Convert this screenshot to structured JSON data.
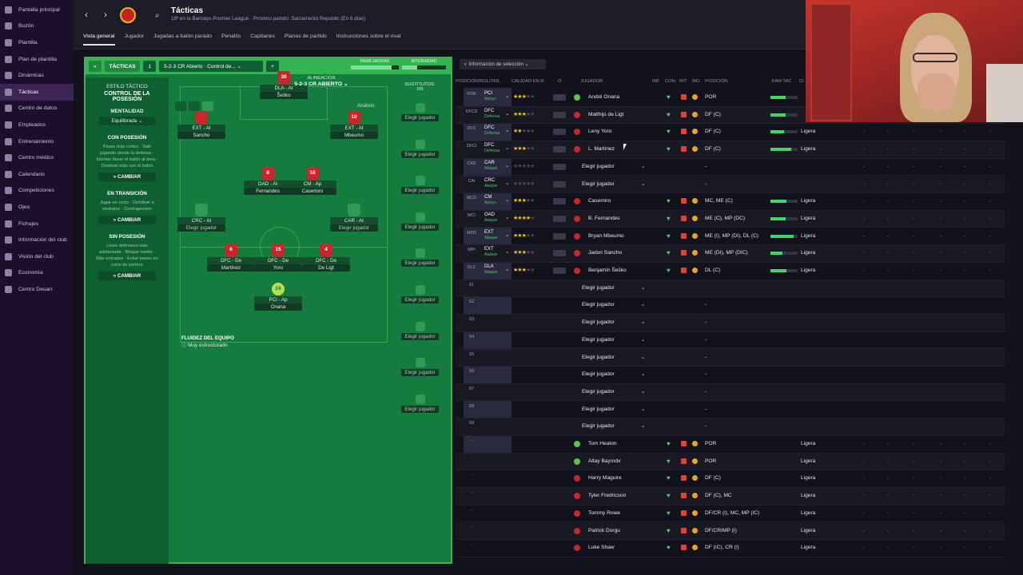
{
  "sidebar": {
    "items": [
      "Pantalla principal",
      "Buzón",
      "Plantilla",
      "Plan de plantilla",
      "Dinámicas",
      "Tácticas",
      "Centro de datos",
      "Empleados",
      "Entrenamiento",
      "Centro médico",
      "Calendario",
      "Competiciones",
      "Ojeo",
      "Fichajes",
      "Información del club",
      "Visión del club",
      "Economía",
      "Centro Desarr."
    ],
    "active_index": 5
  },
  "header": {
    "title": "Tácticas",
    "subtitle": "18º en la Barclays Premier League · Próximo partido: Sacramento Republic (En 6 días)"
  },
  "tabs": [
    "Vista general",
    "Jugador",
    "Jugadas a balón parado",
    "Penaltis",
    "Capitanes",
    "Planes de partido",
    "Instrucciones sobre el rival"
  ],
  "tactic_bar": {
    "label": "TÁCTICAS",
    "slot": "1",
    "formation_select": "5-2-3 CR Abierto · Control de...",
    "add": "+",
    "familiarity": "FAMILIARIDAD",
    "intensity": "INTENSIDAD"
  },
  "style": {
    "label": "ESTILO TÁCTICO",
    "value": "CONTROL DE LA POSESIÓN",
    "mentality_label": "MENTALIDAD",
    "mentality": "Equilibrada",
    "phases": [
      {
        "title": "CON POSESIÓN",
        "text": "Pases más cortos · Salir jugando desde la defensa · Intentar llevar el balón al área · Dominar más con el balón",
        "button": "CAMBIAR"
      },
      {
        "title": "EN TRANSICIÓN",
        "text": "Jugar en corto · Distribuir a centrales · Contrapresión",
        "button": "CAMBIAR"
      },
      {
        "title": "SIN POSESIÓN",
        "text": "Línea defensiva más adelantada · Bloque medio · Más entradas · Evitar pases en corto de portero",
        "button": "CAMBIAR"
      }
    ]
  },
  "alignment": {
    "label": "ALINEACIÓN",
    "formation": "5-2-3 CR ABIERTO",
    "analysis": "Análisis",
    "fluidity_label": "FLUIDEZ DEL EQUIPO",
    "fluidity": "Muy estructurado",
    "players": [
      {
        "num": "30",
        "role": "DLA - At",
        "name": "Šeško"
      },
      {
        "num": "",
        "role": "EXT - At",
        "name": "Sancho"
      },
      {
        "num": "10",
        "role": "EXT - At",
        "name": "Mbeumo"
      },
      {
        "num": "8",
        "role": "OAD - At",
        "name": "Fernandes"
      },
      {
        "num": "18",
        "role": "CM - Ap",
        "name": "Casemiro"
      },
      {
        "num": "",
        "role": "CRC - At",
        "name": "Elegir jugador"
      },
      {
        "num": "",
        "role": "CAR - At",
        "name": "Elegir jugador"
      },
      {
        "num": "6",
        "role": "DFC - De",
        "name": "Martínez"
      },
      {
        "num": "15",
        "role": "DFC - De",
        "name": "Yoro"
      },
      {
        "num": "4",
        "role": "DFC - De",
        "name": "De Ligt"
      },
      {
        "num": "24",
        "role": "PCI - Ap",
        "name": "Onana"
      }
    ]
  },
  "subs": {
    "label": "SUSTITUTOS:",
    "count": "0/9",
    "slot_label": "Elegir jugador"
  },
  "table": {
    "selection_info": "Información de selección",
    "headers": [
      "POSICIÓN/ROL/TAR.",
      "CALIDAD EN R.",
      "O",
      "JUGADOR",
      "INF",
      "CON",
      "RIT",
      "MO.",
      "POSICIÓN",
      "FAM TAC",
      "CI"
    ],
    "rows": [
      {
        "pos": "POR",
        "role": "PCI",
        "duty": "Apoyo",
        "stars": 3,
        "name": "André Onana",
        "ppos": "POR",
        "fam": "",
        "bar": 55
      },
      {
        "pos": "DFCD",
        "role": "DFC",
        "duty": "Defensa",
        "stars": 3,
        "name": "Matthijs de Ligt",
        "ppos": "DF (C)",
        "fam": "",
        "bar": 55
      },
      {
        "pos": "DFC",
        "role": "DFC",
        "duty": "Defensa",
        "stars": 2,
        "name": "Leny Yoro",
        "ppos": "DF (C)",
        "fam": "Ligera",
        "bar": 50
      },
      {
        "pos": "DFCI",
        "role": "DFC",
        "duty": "Defensa",
        "stars": 3,
        "name": "L. Martínez",
        "ppos": "DF (C)",
        "fam": "Ligera",
        "bar": 75
      },
      {
        "pos": "CAD",
        "role": "CAR",
        "duty": "Ataque",
        "stars": 0,
        "name": "Elegir jugador",
        "ppos": "-",
        "fam": "",
        "bar": 0
      },
      {
        "pos": "CAI",
        "role": "CRC",
        "duty": "Ataque",
        "stars": 0,
        "name": "Elegir jugador",
        "ppos": "-",
        "fam": "",
        "bar": 0
      },
      {
        "pos": "MCD",
        "role": "CM",
        "duty": "Apoyo",
        "stars": 3,
        "name": "Casemiro",
        "ppos": "MC, ME (C)",
        "fam": "Ligera",
        "bar": 60
      },
      {
        "pos": "MCI",
        "role": "OAD",
        "duty": "Ataque",
        "stars": 4,
        "name": "B. Fernandes",
        "ppos": "ME (C), MP (DC)",
        "fam": "Ligera",
        "bar": 55
      },
      {
        "pos": "MPD",
        "role": "EXT",
        "duty": "Ataque",
        "stars": 3,
        "name": "Bryan Mbeumo",
        "ppos": "ME (I), MP (DI), DL (C)",
        "fam": "Ligera",
        "bar": 85
      },
      {
        "pos": "MPI",
        "role": "EXT",
        "duty": "Ataque",
        "stars": 3,
        "name": "Jadon Sancho",
        "ppos": "ME (DI), MP (DIC)",
        "fam": "Ligera",
        "bar": 45
      },
      {
        "pos": "DLC",
        "role": "DLA",
        "duty": "Ataque",
        "stars": 3,
        "name": "Benjamin Šeško",
        "ppos": "DL (C)",
        "fam": "Ligera",
        "bar": 60
      },
      {
        "pos": "S1",
        "role": "",
        "duty": "",
        "stars": -1,
        "name": "Elegir jugador",
        "ppos": "",
        "fam": "",
        "bar": 0
      },
      {
        "pos": "S2",
        "role": "",
        "duty": "",
        "stars": -1,
        "name": "Elegir jugador",
        "ppos": "-",
        "fam": "",
        "bar": 0
      },
      {
        "pos": "S3",
        "role": "",
        "duty": "",
        "stars": -1,
        "name": "Elegir jugador",
        "ppos": "-",
        "fam": "",
        "bar": 0
      },
      {
        "pos": "S4",
        "role": "",
        "duty": "",
        "stars": -1,
        "name": "Elegir jugador",
        "ppos": "-",
        "fam": "",
        "bar": 0
      },
      {
        "pos": "S5",
        "role": "",
        "duty": "",
        "stars": -1,
        "name": "Elegir jugador",
        "ppos": "-",
        "fam": "",
        "bar": 0
      },
      {
        "pos": "S6",
        "role": "",
        "duty": "",
        "stars": -1,
        "name": "Elegir jugador",
        "ppos": "-",
        "fam": "",
        "bar": 0
      },
      {
        "pos": "S7",
        "role": "",
        "duty": "",
        "stars": -1,
        "name": "Elegir jugador",
        "ppos": "-",
        "fam": "",
        "bar": 0
      },
      {
        "pos": "S8",
        "role": "",
        "duty": "",
        "stars": -1,
        "name": "Elegir jugador",
        "ppos": "-",
        "fam": "",
        "bar": 0
      },
      {
        "pos": "S9",
        "role": "",
        "duty": "",
        "stars": -1,
        "name": "Elegir jugador",
        "ppos": "-",
        "fam": "",
        "bar": 0
      },
      {
        "pos": "-",
        "role": "",
        "duty": "",
        "stars": -1,
        "name": "Tom Heaton",
        "ppos": "POR",
        "fam": "Ligera",
        "bar": 0
      },
      {
        "pos": "-",
        "role": "",
        "duty": "",
        "stars": -1,
        "name": "Altay Bayındır",
        "ppos": "POR",
        "fam": "Ligera",
        "bar": 0
      },
      {
        "pos": "-",
        "role": "",
        "duty": "",
        "stars": -1,
        "name": "Harry Maguire",
        "ppos": "DF (C)",
        "fam": "Ligera",
        "bar": 0
      },
      {
        "pos": "-",
        "role": "",
        "duty": "",
        "stars": -1,
        "name": "Tyler Fredricson",
        "ppos": "DF (C), MC",
        "fam": "Ligera",
        "bar": 0
      },
      {
        "pos": "-",
        "role": "",
        "duty": "",
        "stars": -1,
        "name": "Tommy Rowe",
        "ppos": "DF/CR (I), MC, MP (IC)",
        "fam": "Ligera",
        "bar": 0
      },
      {
        "pos": "-",
        "role": "",
        "duty": "",
        "stars": -1,
        "name": "Patrick Dorgu",
        "ppos": "DF/CR/MP (I)",
        "fam": "Ligera",
        "bar": 0
      },
      {
        "pos": "-",
        "role": "",
        "duty": "",
        "stars": -1,
        "name": "Luke Shaw",
        "ppos": "DF (IC), CR (I)",
        "fam": "Ligera",
        "bar": 0
      }
    ]
  },
  "colors": {
    "accent_green": "#34b352",
    "pitch": "#147d3d",
    "heart": "#45d46a",
    "stars": "#f1c21b"
  }
}
